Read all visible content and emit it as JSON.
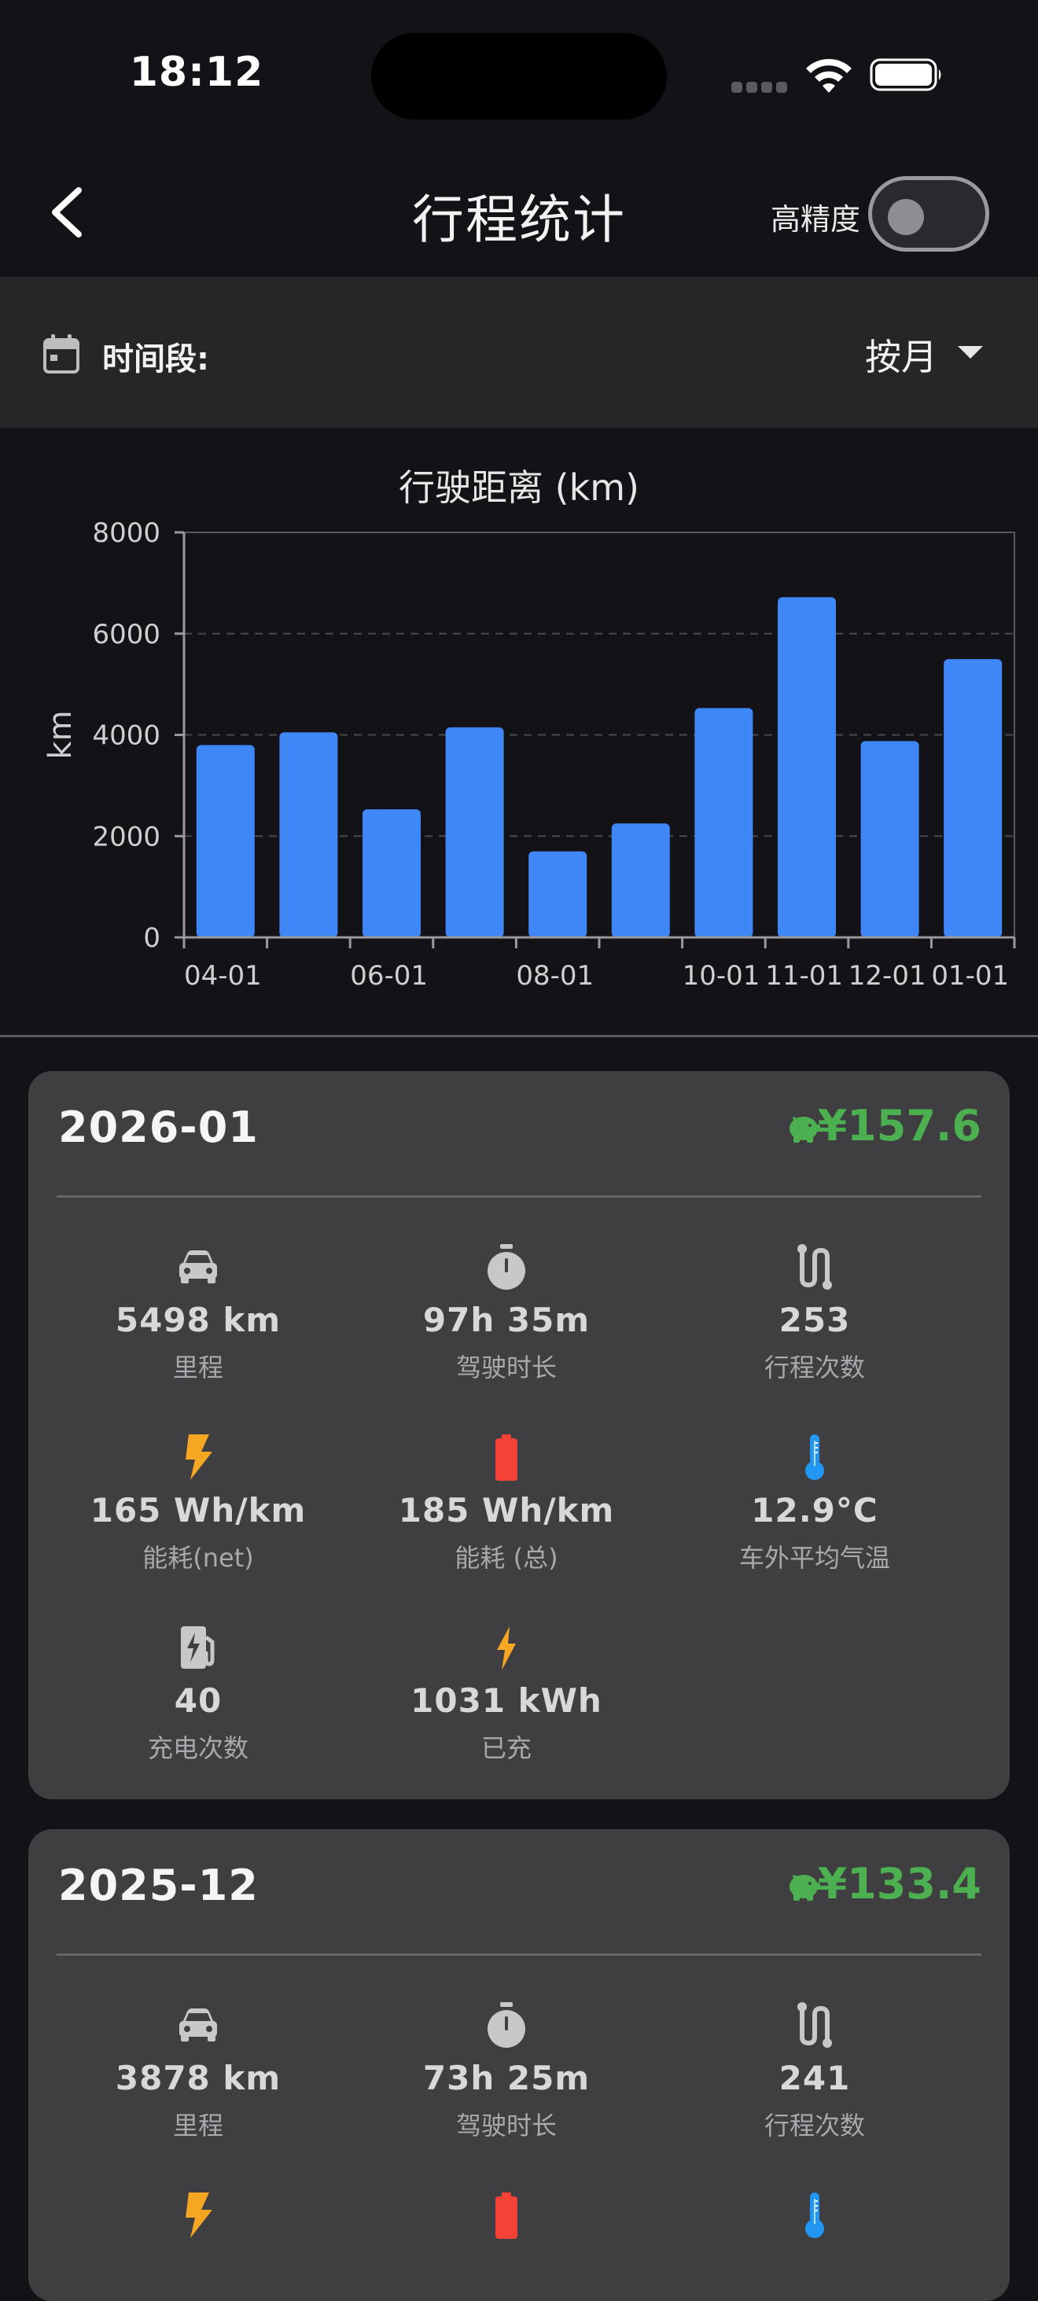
{
  "status_bar": {
    "time": "18:12"
  },
  "header": {
    "title": "行程统计",
    "precision_label": "高精度",
    "precision_on": false
  },
  "period": {
    "label": "时间段:",
    "value": "按月"
  },
  "chart_data": {
    "type": "bar",
    "title": "行驶距离 (km)",
    "ylabel": "km",
    "xlabel": "",
    "ylim": [
      0,
      8000
    ],
    "yticks": [
      0,
      2000,
      4000,
      6000,
      8000
    ],
    "grid": "horizontal-dashed",
    "color": "#3f86f7",
    "categories": [
      "2025-04",
      "2025-05",
      "2025-06",
      "2025-07",
      "2025-08",
      "2025-09",
      "2025-10",
      "2025-11",
      "2025-12",
      "2026-01"
    ],
    "tick_labels": [
      "04-01",
      "06-01",
      "08-01",
      "10-01",
      "11-01",
      "12-01",
      "01-01"
    ],
    "values": [
      3800,
      4050,
      2530,
      4150,
      1700,
      2250,
      4530,
      6720,
      3878,
      5498
    ]
  },
  "cards": [
    {
      "month": "2026-01",
      "cost": "¥157.6",
      "stats": [
        {
          "icon": "car-icon",
          "value": "5498 km",
          "label": "里程"
        },
        {
          "icon": "stopwatch-icon",
          "value": "97h 35m",
          "label": "驾驶时长"
        },
        {
          "icon": "route-icon",
          "value": "253",
          "label": "行程次数"
        },
        {
          "icon": "bolt-icon",
          "value": "165 Wh/km",
          "label": "能耗(net)"
        },
        {
          "icon": "battery-icon",
          "value": "185 Wh/km",
          "label": "能耗 (总)"
        },
        {
          "icon": "thermometer-icon",
          "value": "12.9°C",
          "label": "车外平均气温"
        },
        {
          "icon": "charging-station-icon",
          "value": "40",
          "label": "充电次数"
        },
        {
          "icon": "small-bolt-icon",
          "value": "1031 kWh",
          "label": "已充"
        }
      ]
    },
    {
      "month": "2025-12",
      "cost": "¥133.4",
      "stats": [
        {
          "icon": "car-icon",
          "value": "3878 km",
          "label": "里程"
        },
        {
          "icon": "stopwatch-icon",
          "value": "73h 25m",
          "label": "驾驶时长"
        },
        {
          "icon": "route-icon",
          "value": "241",
          "label": "行程次数"
        },
        {
          "icon": "bolt-icon",
          "value": "",
          "label": ""
        },
        {
          "icon": "battery-icon",
          "value": "",
          "label": ""
        },
        {
          "icon": "thermometer-icon",
          "value": "",
          "label": ""
        }
      ]
    }
  ],
  "colors": {
    "background": "#131217",
    "card": "#3f3f41",
    "bar": "#3f86f7",
    "cost": "#4caf50",
    "bolt": "#f5a623",
    "battery": "#f44336",
    "thermometer": "#2196f3",
    "icon_gray": "#c8c8c8"
  }
}
